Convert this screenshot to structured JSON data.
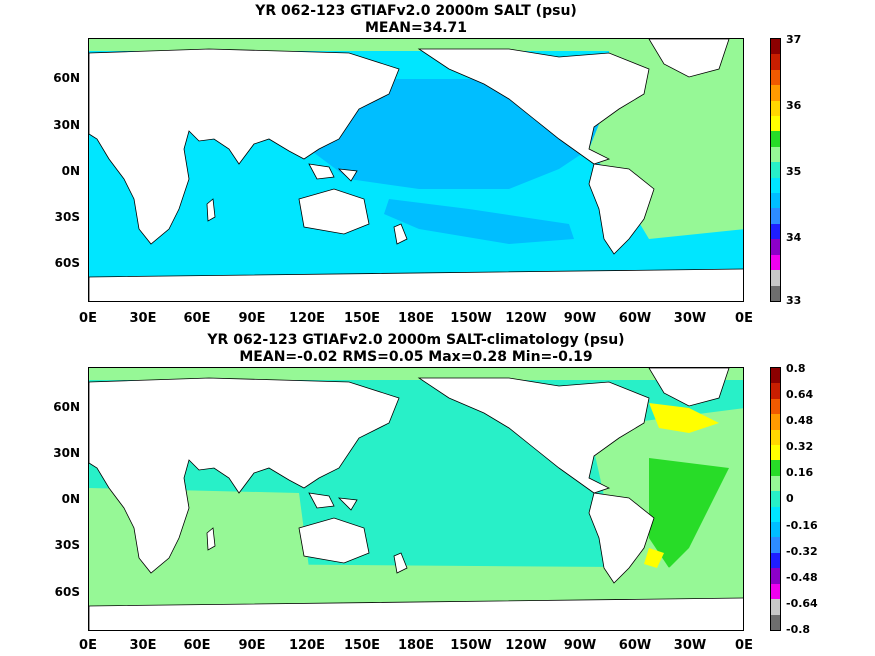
{
  "top": {
    "title_line1": "YR 062-123 GTIAFv2.0 2000m SALT (psu)",
    "title_line2": "MEAN=34.71",
    "colorbar_labels": [
      "37",
      "36",
      "35",
      "34",
      "33"
    ],
    "colorbar_colors": [
      "#8b0000",
      "#c81e00",
      "#f05a00",
      "#ff9a00",
      "#ffd700",
      "#ffff00",
      "#28dc28",
      "#96f896",
      "#28f0c8",
      "#00e6ff",
      "#00beff",
      "#2d8cff",
      "#1e1eff",
      "#8c00c8",
      "#f000f0",
      "#c8c8c8",
      "#6e6e6e"
    ]
  },
  "bottom": {
    "title_line1": "YR 062-123 GTIAFv2.0 2000m SALT-climatology (psu)",
    "title_line2": "MEAN=-0.02   RMS=0.05   Max=0.28   Min=-0.19",
    "colorbar_labels": [
      "0.8",
      "0.64",
      "0.48",
      "0.32",
      "0.16",
      "0",
      "-0.16",
      "-0.32",
      "-0.48",
      "-0.64",
      "-0.8"
    ],
    "colorbar_colors": [
      "#8b0000",
      "#c81e00",
      "#f05a00",
      "#ff9a00",
      "#ffd700",
      "#ffff00",
      "#28dc28",
      "#96f896",
      "#28f0c8",
      "#00e6ff",
      "#00beff",
      "#2d8cff",
      "#1e1eff",
      "#8c00c8",
      "#f000f0",
      "#c8c8c8",
      "#6e6e6e"
    ]
  },
  "lat_labels": [
    "60N",
    "30N",
    "0N",
    "30S",
    "60S"
  ],
  "lon_labels": [
    "0E",
    "30E",
    "60E",
    "90E",
    "120E",
    "150E",
    "180E",
    "150W",
    "120W",
    "90W",
    "60W",
    "30W",
    "0E"
  ]
}
